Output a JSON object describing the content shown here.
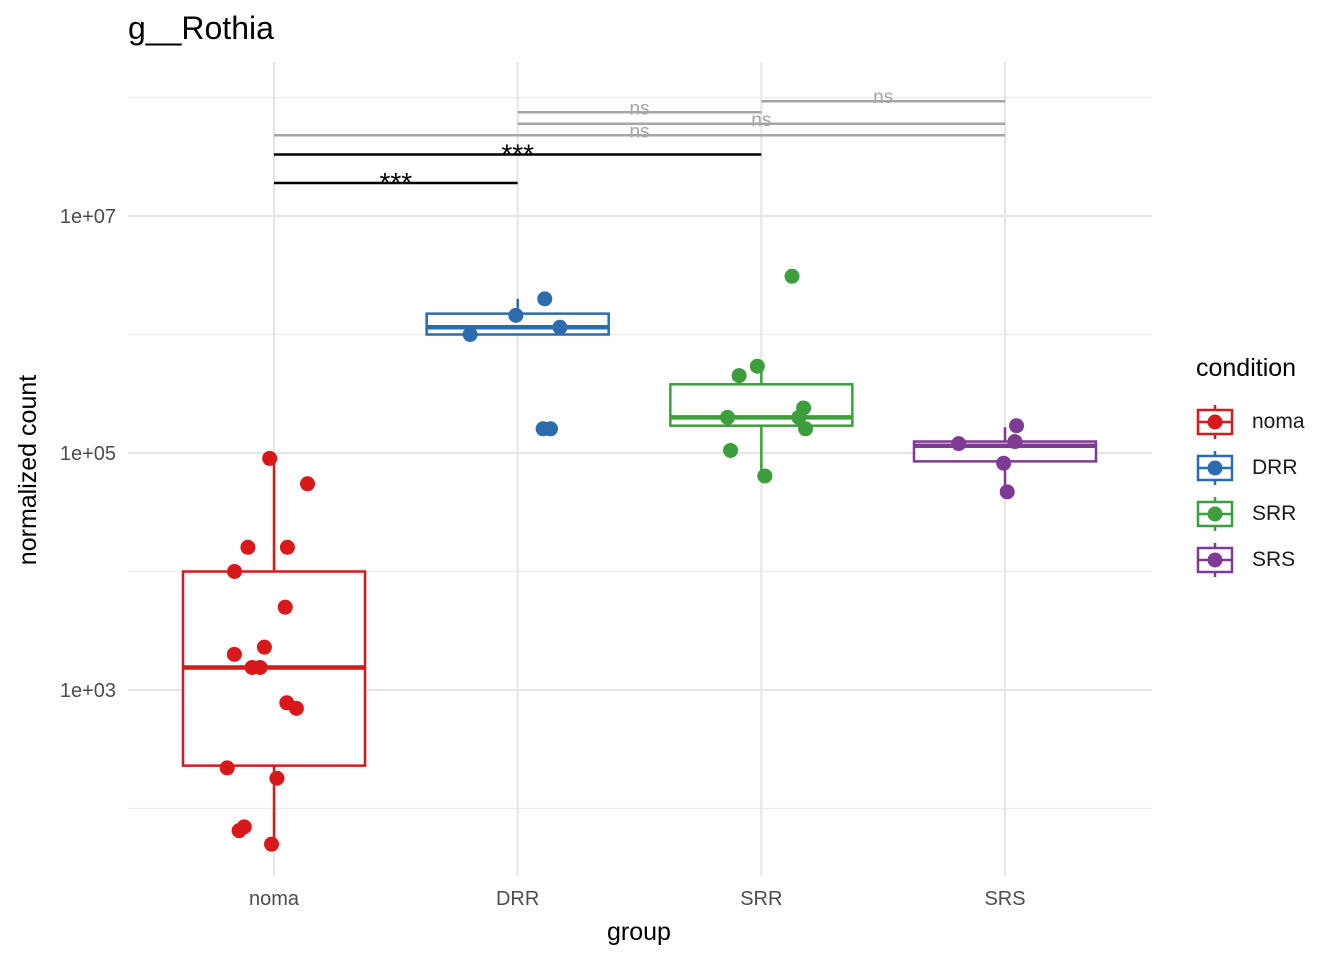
{
  "chart_data": {
    "type": "box",
    "title": "g__Rothia",
    "xlabel": "group",
    "ylabel": "normalized count",
    "y_scale": "log10",
    "ylim": [
      40,
      150000000
    ],
    "y_ticks": [
      1000,
      100000,
      10000000
    ],
    "y_tick_labels": [
      "1e+03",
      "1e+05",
      "1e+07"
    ],
    "categories": [
      "noma",
      "DRR",
      "SRR",
      "SRS"
    ],
    "grid": true,
    "legend": {
      "title": "condition",
      "position": "right",
      "entries": [
        "noma",
        "DRR",
        "SRR",
        "SRS"
      ]
    },
    "colors": {
      "noma": "#d7191c",
      "DRR": "#2c6bac",
      "SRR": "#3d9e3d",
      "SRS": "#7f3a93",
      "ns": "#a6a6a6",
      "sig": "#000000"
    },
    "series": [
      {
        "name": "noma",
        "box": {
          "q1": 230,
          "median": 1550,
          "q3": 10000,
          "whisker_low": 50,
          "whisker_high": 90000
        },
        "points": [
          90000,
          55000,
          16000,
          16000,
          10000,
          5000,
          2300,
          2000,
          1550,
          1550,
          780,
          700,
          220,
          180,
          70,
          65,
          50
        ]
      },
      {
        "name": "DRR",
        "box": {
          "q1": 1000000,
          "median": 1150000,
          "q3": 1500000,
          "whisker_low": 1000000,
          "whisker_high": 2000000
        },
        "points": [
          2000000,
          1450000,
          1150000,
          1000000,
          160000,
          160000
        ]
      },
      {
        "name": "SRR",
        "box": {
          "q1": 170000,
          "median": 200000,
          "q3": 380000,
          "whisker_low": 70000,
          "whisker_high": 500000
        },
        "points": [
          3100000,
          540000,
          450000,
          240000,
          200000,
          200000,
          160000,
          105000,
          64000
        ]
      },
      {
        "name": "SRS",
        "box": {
          "q1": 85000,
          "median": 115000,
          "q3": 125000,
          "whisker_low": 50000,
          "whisker_high": 165000
        },
        "points": [
          170000,
          125000,
          120000,
          82000,
          47000
        ]
      }
    ],
    "comparisons": [
      {
        "groups": [
          "noma",
          "DRR"
        ],
        "label": "***",
        "y": 19000000
      },
      {
        "groups": [
          "noma",
          "SRR"
        ],
        "label": "***",
        "y": 33000000
      },
      {
        "groups": [
          "noma",
          "SRS"
        ],
        "label": "ns",
        "y": 48000000
      },
      {
        "groups": [
          "DRR",
          "SRS"
        ],
        "label": "ns",
        "y": 60000000
      },
      {
        "groups": [
          "DRR",
          "SRR"
        ],
        "label": "ns",
        "y": 75000000
      },
      {
        "groups": [
          "SRR",
          "SRS"
        ],
        "label": "ns",
        "y": 93000000
      }
    ]
  }
}
